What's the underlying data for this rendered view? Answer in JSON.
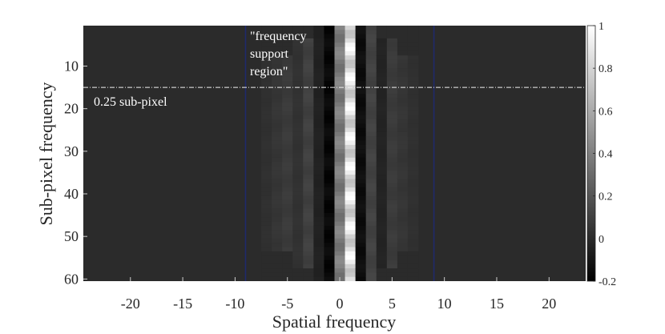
{
  "chart_data": {
    "type": "heatmap",
    "xlabel": "Spatial frequency",
    "ylabel": "Sub-pixel frequency",
    "x_ticks": [
      -20,
      -15,
      -10,
      -5,
      0,
      5,
      10,
      15,
      20
    ],
    "y_ticks": [
      10,
      20,
      30,
      40,
      50,
      60
    ],
    "xlim": [
      -24.5,
      23.5
    ],
    "ylim": [
      0.5,
      60.5
    ],
    "y_reversed": true,
    "colorbar": {
      "range": [
        -0.2,
        1
      ],
      "ticks": [
        -0.2,
        0,
        0.2,
        0.4,
        0.6,
        0.8,
        1
      ],
      "tick_labels": [
        "-0.2",
        "0",
        "0.2",
        "0.4",
        "0.6",
        "0.8",
        "1"
      ],
      "colormap": "gray"
    },
    "columns": [
      {
        "x": -7,
        "value": 0.03
      },
      {
        "x": -6,
        "value": 0.06
      },
      {
        "x": -5,
        "value": 0.09
      },
      {
        "x": -4,
        "value": 0.04
      },
      {
        "x": -3,
        "value": 0.12
      },
      {
        "x": -2,
        "value": -0.05
      },
      {
        "x": -1,
        "value": -0.19
      },
      {
        "x": 0,
        "value": 0.45
      },
      {
        "x": 1,
        "value": 1.0
      },
      {
        "x": 2,
        "value": -0.16
      },
      {
        "x": 3,
        "value": 0.13
      },
      {
        "x": 4,
        "value": -0.04
      },
      {
        "x": 5,
        "value": 0.09
      },
      {
        "x": 6,
        "value": 0.06
      },
      {
        "x": 7,
        "value": 0.03
      }
    ],
    "background_value": 0.0,
    "support_region_lines": {
      "x": [
        -9,
        9
      ],
      "color": "#1f2a6b"
    },
    "threshold_line": {
      "y": 15,
      "color": "#f0f0f0",
      "label": "0.25 sub-pixel"
    },
    "annotation": {
      "lines": [
        "\"frequency",
        "support",
        "region\""
      ]
    }
  }
}
